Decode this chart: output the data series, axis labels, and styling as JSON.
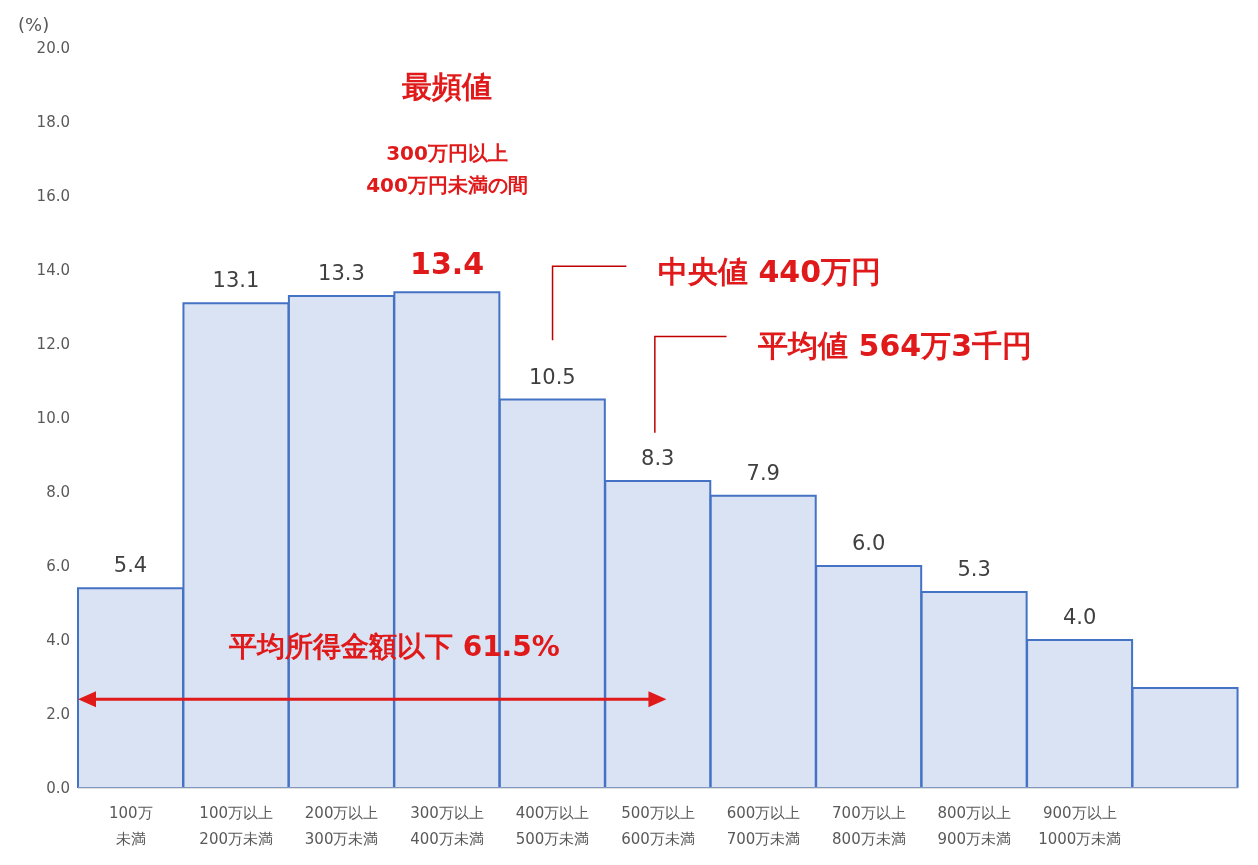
{
  "chart_data": {
    "type": "bar",
    "ylabel": "(%)",
    "categories": [
      "100万未満",
      "100万以上200万未満",
      "200万以上300万未満",
      "300万以上400万未満",
      "400万以上500万未満",
      "500万以上600万未満",
      "600万以上700万未満",
      "700万以上800万未満",
      "800万以上900万未満",
      "900万以上1000万未満",
      null
    ],
    "values": [
      5.4,
      13.1,
      13.3,
      13.4,
      10.5,
      8.3,
      7.9,
      6.0,
      5.3,
      4.0,
      2.7
    ],
    "value_labels": [
      "5.4",
      "13.1",
      "13.3",
      null,
      "10.5",
      "8.3",
      "7.9",
      "6.0",
      "5.3",
      "4.0",
      null
    ],
    "color": "#dae3f3",
    "ylim": [
      0,
      20
    ],
    "yticks": [
      {
        "value": 0,
        "label": "0.0"
      },
      {
        "value": 2,
        "label": "2.0"
      },
      {
        "value": 4,
        "label": "4.0"
      },
      {
        "value": 6,
        "label": "6.0"
      },
      {
        "value": 8,
        "label": "8.0"
      },
      {
        "value": 10,
        "label": "10.0"
      },
      {
        "value": 12,
        "label": "12.0"
      },
      {
        "value": 14,
        "label": "14.0"
      },
      {
        "value": 16,
        "label": "16.0"
      },
      {
        "value": 18,
        "label": "18.0"
      },
      {
        "value": 20,
        "label": "20.0"
      }
    ],
    "grid": false,
    "legend": false,
    "annotations": [
      "最頻値",
      "300万円以上\n400万円未満の間",
      {
        "text": "13.4",
        "x": "300万以上400万未満",
        "y": 13.4
      },
      "中央値 440万円",
      "平均値 564万3千円",
      "平均所得金額以下 61.5%"
    ]
  }
}
